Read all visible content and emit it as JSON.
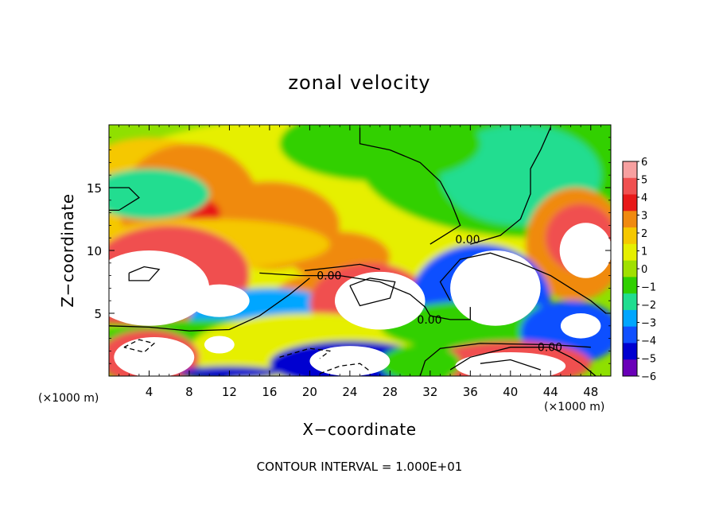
{
  "chart_data": {
    "type": "heatmap",
    "title": "zonal velocity",
    "xlabel": "X−coordinate",
    "ylabel": "Z−coordinate",
    "x_unit_label": "(×1000 m)",
    "xlim": [
      0,
      50
    ],
    "ylim": [
      0,
      20
    ],
    "x_ticks": [
      4,
      8,
      12,
      16,
      20,
      24,
      28,
      32,
      36,
      40,
      44,
      48
    ],
    "x_tick_labels": [
      "4",
      "8",
      "12",
      "16",
      "20",
      "24",
      "28",
      "32",
      "36",
      "40",
      "44",
      "48"
    ],
    "y_ticks": [
      5,
      10,
      15
    ],
    "y_tick_labels": [
      "5",
      "10",
      "15"
    ],
    "colorbar": {
      "levels": [
        6,
        5,
        4,
        3,
        2,
        1,
        0,
        -1,
        -2,
        -3,
        -4,
        -5,
        -6
      ],
      "labels": [
        "6",
        "5",
        "4",
        "3",
        "2",
        "1",
        "0",
        "−1",
        "−2",
        "−3",
        "−4",
        "−5",
        "−6"
      ],
      "colors": [
        "#f7a0a0",
        "#f05050",
        "#e81818",
        "#f08a10",
        "#f5c800",
        "#e6ef00",
        "#a0e000",
        "#30d000",
        "#20dd90",
        "#00a6ff",
        "#1050ff",
        "#0000d0",
        "#6a00b8"
      ]
    },
    "zero_contour_labels": [
      {
        "text": "0.00",
        "x": 20.7,
        "y": 8.0
      },
      {
        "text": "0.00",
        "x": 34.5,
        "y": 10.9
      },
      {
        "text": "0.00",
        "x": 30.7,
        "y": 4.5
      },
      {
        "text": "0.00",
        "x": 42.7,
        "y": 2.3
      }
    ],
    "regions": [
      {
        "kind": "oval",
        "value": 1.0,
        "cx": 25,
        "cy": 13,
        "rx": 30,
        "ry": 8
      },
      {
        "kind": "oval",
        "value": 1.7,
        "cx": 4,
        "cy": 12,
        "rx": 10,
        "ry": 7
      },
      {
        "kind": "oval",
        "value": 2.6,
        "cx": 8,
        "cy": 13.5,
        "rx": 7,
        "ry": 5
      },
      {
        "kind": "oval",
        "value": 2.8,
        "cx": 16,
        "cy": 12,
        "rx": 7,
        "ry": 3.5
      },
      {
        "kind": "oval",
        "value": 3.3,
        "cx": 9,
        "cy": 14.5,
        "rx": 4.5,
        "ry": 3
      },
      {
        "kind": "oval",
        "value": 4.3,
        "cx": 9.5,
        "cy": 13,
        "rx": 1.6,
        "ry": 1
      },
      {
        "kind": "oval",
        "value": 4.5,
        "cx": 6,
        "cy": 11.4,
        "rx": 1.4,
        "ry": 0.9
      },
      {
        "kind": "oval",
        "value": 2.5,
        "cx": 23,
        "cy": 9.5,
        "rx": 5,
        "ry": 2
      },
      {
        "kind": "oval",
        "value": -1.2,
        "cx": 43,
        "cy": 17,
        "rx": 18,
        "ry": 6
      },
      {
        "kind": "oval",
        "value": -1.8,
        "cx": 41,
        "cy": 16,
        "rx": 8,
        "ry": 4
      },
      {
        "kind": "oval",
        "value": -1.2,
        "cx": 27,
        "cy": 18.5,
        "rx": 10,
        "ry": 3
      },
      {
        "kind": "oval",
        "value": -2.0,
        "cx": 4,
        "cy": 14.5,
        "rx": 6,
        "ry": 2
      },
      {
        "kind": "oval",
        "value": 1.5,
        "cx": 10,
        "cy": 10.5,
        "rx": 12,
        "ry": 2
      },
      {
        "kind": "oval",
        "value": 2.5,
        "cx": 46.5,
        "cy": 10.5,
        "rx": 5,
        "ry": 4.5
      },
      {
        "kind": "oval",
        "value": 4.8,
        "cx": 47,
        "cy": 11,
        "rx": 3.5,
        "ry": 2.7
      },
      {
        "kind": "oval",
        "value": 8.0,
        "cx": 47.5,
        "cy": 10,
        "rx": 2.6,
        "ry": 2.2
      },
      {
        "kind": "oval",
        "value": 5.0,
        "cx": 6,
        "cy": 8,
        "rx": 8,
        "ry": 4
      },
      {
        "kind": "oval",
        "value": 8.0,
        "cx": 4,
        "cy": 7,
        "rx": 6,
        "ry": 3
      },
      {
        "kind": "oval",
        "value": 8.0,
        "cx": 11,
        "cy": 6,
        "rx": 3,
        "ry": 1.3
      },
      {
        "kind": "oval",
        "value": 5.0,
        "cx": 6,
        "cy": 5,
        "rx": 10,
        "ry": 1
      },
      {
        "kind": "oval",
        "value": 3.0,
        "cx": 20,
        "cy": 5.5,
        "rx": 4,
        "ry": 2.5
      },
      {
        "kind": "oval",
        "value": -3.5,
        "cx": 16,
        "cy": 4.5,
        "rx": 8,
        "ry": 2.5
      },
      {
        "kind": "oval",
        "value": 5.0,
        "cx": 26,
        "cy": 5.8,
        "rx": 6,
        "ry": 3.2
      },
      {
        "kind": "oval",
        "value": 8.0,
        "cx": 27,
        "cy": 6,
        "rx": 4.5,
        "ry": 2.3
      },
      {
        "kind": "oval",
        "value": -1.5,
        "cx": 10,
        "cy": 2.5,
        "rx": 12,
        "ry": 2
      },
      {
        "kind": "oval",
        "value": 0.5,
        "cx": 20,
        "cy": 2,
        "rx": 12,
        "ry": 3
      },
      {
        "kind": "oval",
        "value": 5.0,
        "cx": 4,
        "cy": 1.5,
        "rx": 5,
        "ry": 2.2
      },
      {
        "kind": "oval",
        "value": 8.0,
        "cx": 4.5,
        "cy": 1.5,
        "rx": 4,
        "ry": 1.6
      },
      {
        "kind": "oval",
        "value": -5.5,
        "cx": 12,
        "cy": 0.3,
        "rx": 5,
        "ry": 0.5
      },
      {
        "kind": "oval",
        "value": -5.0,
        "cx": 24,
        "cy": 1,
        "rx": 8,
        "ry": 1.8
      },
      {
        "kind": "oval",
        "value": 8.0,
        "cx": 24,
        "cy": 1.2,
        "rx": 4,
        "ry": 1.2
      },
      {
        "kind": "oval",
        "value": 8.0,
        "cx": 11,
        "cy": 2.5,
        "rx": 1.5,
        "ry": 0.7
      },
      {
        "kind": "oval",
        "value": -4.0,
        "cx": 37,
        "cy": 6,
        "rx": 7,
        "ry": 4.5
      },
      {
        "kind": "oval",
        "value": -1.5,
        "cx": 37,
        "cy": 4,
        "rx": 10,
        "ry": 2
      },
      {
        "kind": "oval",
        "value": -8.0,
        "cx": 38.5,
        "cy": 7,
        "rx": 4.5,
        "ry": 3
      },
      {
        "kind": "oval",
        "value": -4.5,
        "cx": 46,
        "cy": 3.5,
        "rx": 5,
        "ry": 2.5
      },
      {
        "kind": "oval",
        "value": -8.0,
        "cx": 47,
        "cy": 4,
        "rx": 2,
        "ry": 1
      },
      {
        "kind": "oval",
        "value": 4.5,
        "cx": 40,
        "cy": 1,
        "rx": 8,
        "ry": 1.8
      },
      {
        "kind": "oval",
        "value": 8.0,
        "cx": 40,
        "cy": 0.8,
        "rx": 5.5,
        "ry": 1.1
      },
      {
        "kind": "oval",
        "value": -1.2,
        "cx": 31,
        "cy": 1,
        "rx": 4,
        "ry": 1.5
      }
    ],
    "contours": [
      {
        "style": "solid",
        "value": 0,
        "points": [
          [
            0,
            15
          ],
          [
            2,
            15
          ],
          [
            3,
            14.2
          ],
          [
            1,
            13.2
          ],
          [
            0,
            13.2
          ]
        ]
      },
      {
        "style": "solid",
        "value": 0,
        "points": [
          [
            15,
            8.2
          ],
          [
            19,
            8.0
          ],
          [
            23,
            8.0
          ],
          [
            27,
            7.5
          ],
          [
            30,
            6.5
          ],
          [
            31.5,
            5.5
          ],
          [
            32,
            4.8
          ],
          [
            34,
            4.5
          ],
          [
            36,
            4.5
          ],
          [
            36,
            5.5
          ]
        ]
      },
      {
        "style": "solid",
        "value": 0,
        "points": [
          [
            0,
            4.0
          ],
          [
            4,
            3.9
          ],
          [
            8,
            3.6
          ],
          [
            12,
            3.7
          ],
          [
            15,
            4.8
          ],
          [
            18,
            6.5
          ],
          [
            20,
            7.8
          ]
        ]
      },
      {
        "style": "solid",
        "value": 0,
        "points": [
          [
            19.5,
            8.4
          ],
          [
            23,
            8.7
          ],
          [
            25,
            8.9
          ],
          [
            27,
            8.5
          ]
        ]
      },
      {
        "style": "solid",
        "value": 0,
        "points": [
          [
            34,
            0.5
          ],
          [
            36,
            1.5
          ],
          [
            40,
            2.3
          ],
          [
            44,
            2.3
          ],
          [
            46,
            1.5
          ],
          [
            47,
            1.0
          ],
          [
            48.5,
            0
          ]
        ]
      },
      {
        "style": "solid",
        "value": 0,
        "points": [
          [
            31,
            0
          ],
          [
            31.5,
            1.2
          ],
          [
            33,
            2.2
          ],
          [
            37,
            2.6
          ],
          [
            44,
            2.5
          ],
          [
            48,
            2.3
          ]
        ]
      },
      {
        "style": "solid",
        "value": 0,
        "points": [
          [
            25,
            19.8
          ],
          [
            25,
            18.5
          ],
          [
            28,
            18.0
          ],
          [
            31,
            17.0
          ],
          [
            33,
            15.5
          ],
          [
            34,
            14.0
          ],
          [
            34.5,
            13.0
          ],
          [
            35,
            12.0
          ],
          [
            33,
            11.0
          ],
          [
            32,
            10.5
          ]
        ]
      },
      {
        "style": "solid",
        "value": 0,
        "points": [
          [
            36,
            10.5
          ],
          [
            39,
            11.2
          ],
          [
            41,
            12.5
          ],
          [
            42,
            14.5
          ],
          [
            42,
            16.5
          ],
          [
            43,
            18
          ],
          [
            44,
            19.8
          ]
        ]
      },
      {
        "style": "solid",
        "value": 0,
        "points": [
          [
            49.5,
            5
          ],
          [
            48,
            6
          ],
          [
            46,
            7
          ],
          [
            44,
            8
          ],
          [
            41,
            9
          ],
          [
            38,
            9.8
          ],
          [
            35,
            9.3
          ],
          [
            33,
            7.5
          ],
          [
            34,
            6
          ]
        ]
      },
      {
        "style": "solid",
        "value": 0,
        "points": [
          [
            2,
            8.2
          ],
          [
            3.5,
            8.7
          ],
          [
            5,
            8.5
          ],
          [
            4,
            7.6
          ],
          [
            2,
            7.6
          ],
          [
            2,
            8.2
          ]
        ]
      },
      {
        "style": "solid",
        "value": 0,
        "points": [
          [
            24,
            7.2
          ],
          [
            26,
            7.8
          ],
          [
            28.5,
            7.5
          ],
          [
            28,
            6.2
          ],
          [
            25,
            5.6
          ],
          [
            24,
            7.2
          ]
        ]
      },
      {
        "style": "solid",
        "value": 0,
        "points": [
          [
            37,
            1.0
          ],
          [
            40,
            1.3
          ],
          [
            43,
            0.5
          ]
        ]
      },
      {
        "style": "dashed",
        "value": 0,
        "points": [
          [
            1.5,
            2.3
          ],
          [
            3,
            2.9
          ],
          [
            4.5,
            2.6
          ],
          [
            3.5,
            1.9
          ],
          [
            1.5,
            2.3
          ]
        ]
      },
      {
        "style": "dashed",
        "value": 0,
        "points": [
          [
            17,
            1.5
          ],
          [
            20,
            2.2
          ],
          [
            22,
            2.0
          ],
          [
            21,
            1.4
          ]
        ]
      },
      {
        "style": "dashed",
        "value": 0,
        "points": [
          [
            21,
            0.2
          ],
          [
            23,
            0.8
          ],
          [
            25,
            1.0
          ],
          [
            26,
            0.4
          ]
        ]
      }
    ]
  },
  "caption": "CONTOUR INTERVAL = 1.000E+01"
}
